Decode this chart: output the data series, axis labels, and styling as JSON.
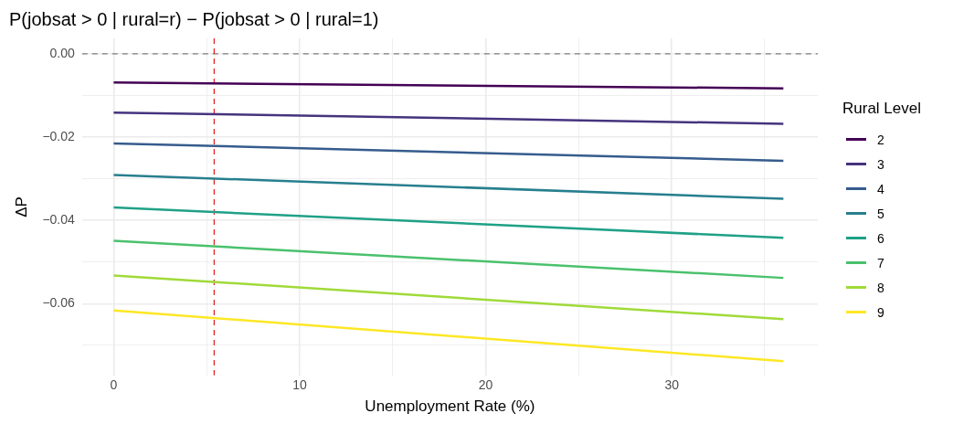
{
  "chart_data": {
    "type": "line",
    "title": "P(jobsat > 0 | rural=r) − P(jobsat > 0 | rural=1)",
    "xlabel": "Unemployment Rate (%)",
    "ylabel": "ΔP",
    "legend_title": "Rural Level",
    "legend": "right",
    "grid": true,
    "marker": "none",
    "line_style": "solid",
    "xlim": [
      -1.7,
      37.85
    ],
    "ylim": [
      -0.0772,
      0.0037
    ],
    "xticks": [
      0,
      {
        "value": 5,
        "label": null
      },
      10,
      {
        "value": 15,
        "label": null
      },
      20,
      {
        "value": 25,
        "label": null
      },
      30,
      {
        "value": 35,
        "label": null
      }
    ],
    "yticks": [
      {
        "value": -0.07,
        "label": null
      },
      {
        "value": -0.06,
        "label": "−0.06"
      },
      {
        "value": -0.05,
        "label": null
      },
      {
        "value": -0.04,
        "label": "−0.04"
      },
      {
        "value": -0.03,
        "label": null
      },
      {
        "value": -0.02,
        "label": "−0.02"
      },
      {
        "value": -0.01,
        "label": null
      },
      {
        "value": 0,
        "label": "0.00"
      }
    ],
    "ref_lines": [
      {
        "axis": "y",
        "value": 0,
        "label": null,
        "color": "#808080",
        "line_style": "dashed"
      },
      {
        "axis": "x",
        "value": 5.4,
        "label": null,
        "color": "#e41a1c",
        "line_style": "dashed"
      }
    ],
    "x": [
      0,
      36
    ],
    "series": [
      {
        "name": "2",
        "color": "#440154",
        "values": [
          -0.0069,
          -0.0083
        ]
      },
      {
        "name": "3",
        "color": "#46337e",
        "values": [
          -0.0141,
          -0.0168
        ]
      },
      {
        "name": "4",
        "color": "#365c8d",
        "values": [
          -0.0215,
          -0.0257
        ]
      },
      {
        "name": "5",
        "color": "#277f8e",
        "values": [
          -0.0291,
          -0.0348
        ]
      },
      {
        "name": "6",
        "color": "#1fa187",
        "values": [
          -0.0369,
          -0.0442
        ]
      },
      {
        "name": "7",
        "color": "#4ac16d",
        "values": [
          -0.0449,
          -0.0538
        ]
      },
      {
        "name": "8",
        "color": "#a0da39",
        "values": [
          -0.0532,
          -0.0637
        ]
      },
      {
        "name": "9",
        "color": "#fde725",
        "values": [
          -0.0616,
          -0.0738
        ]
      }
    ]
  }
}
